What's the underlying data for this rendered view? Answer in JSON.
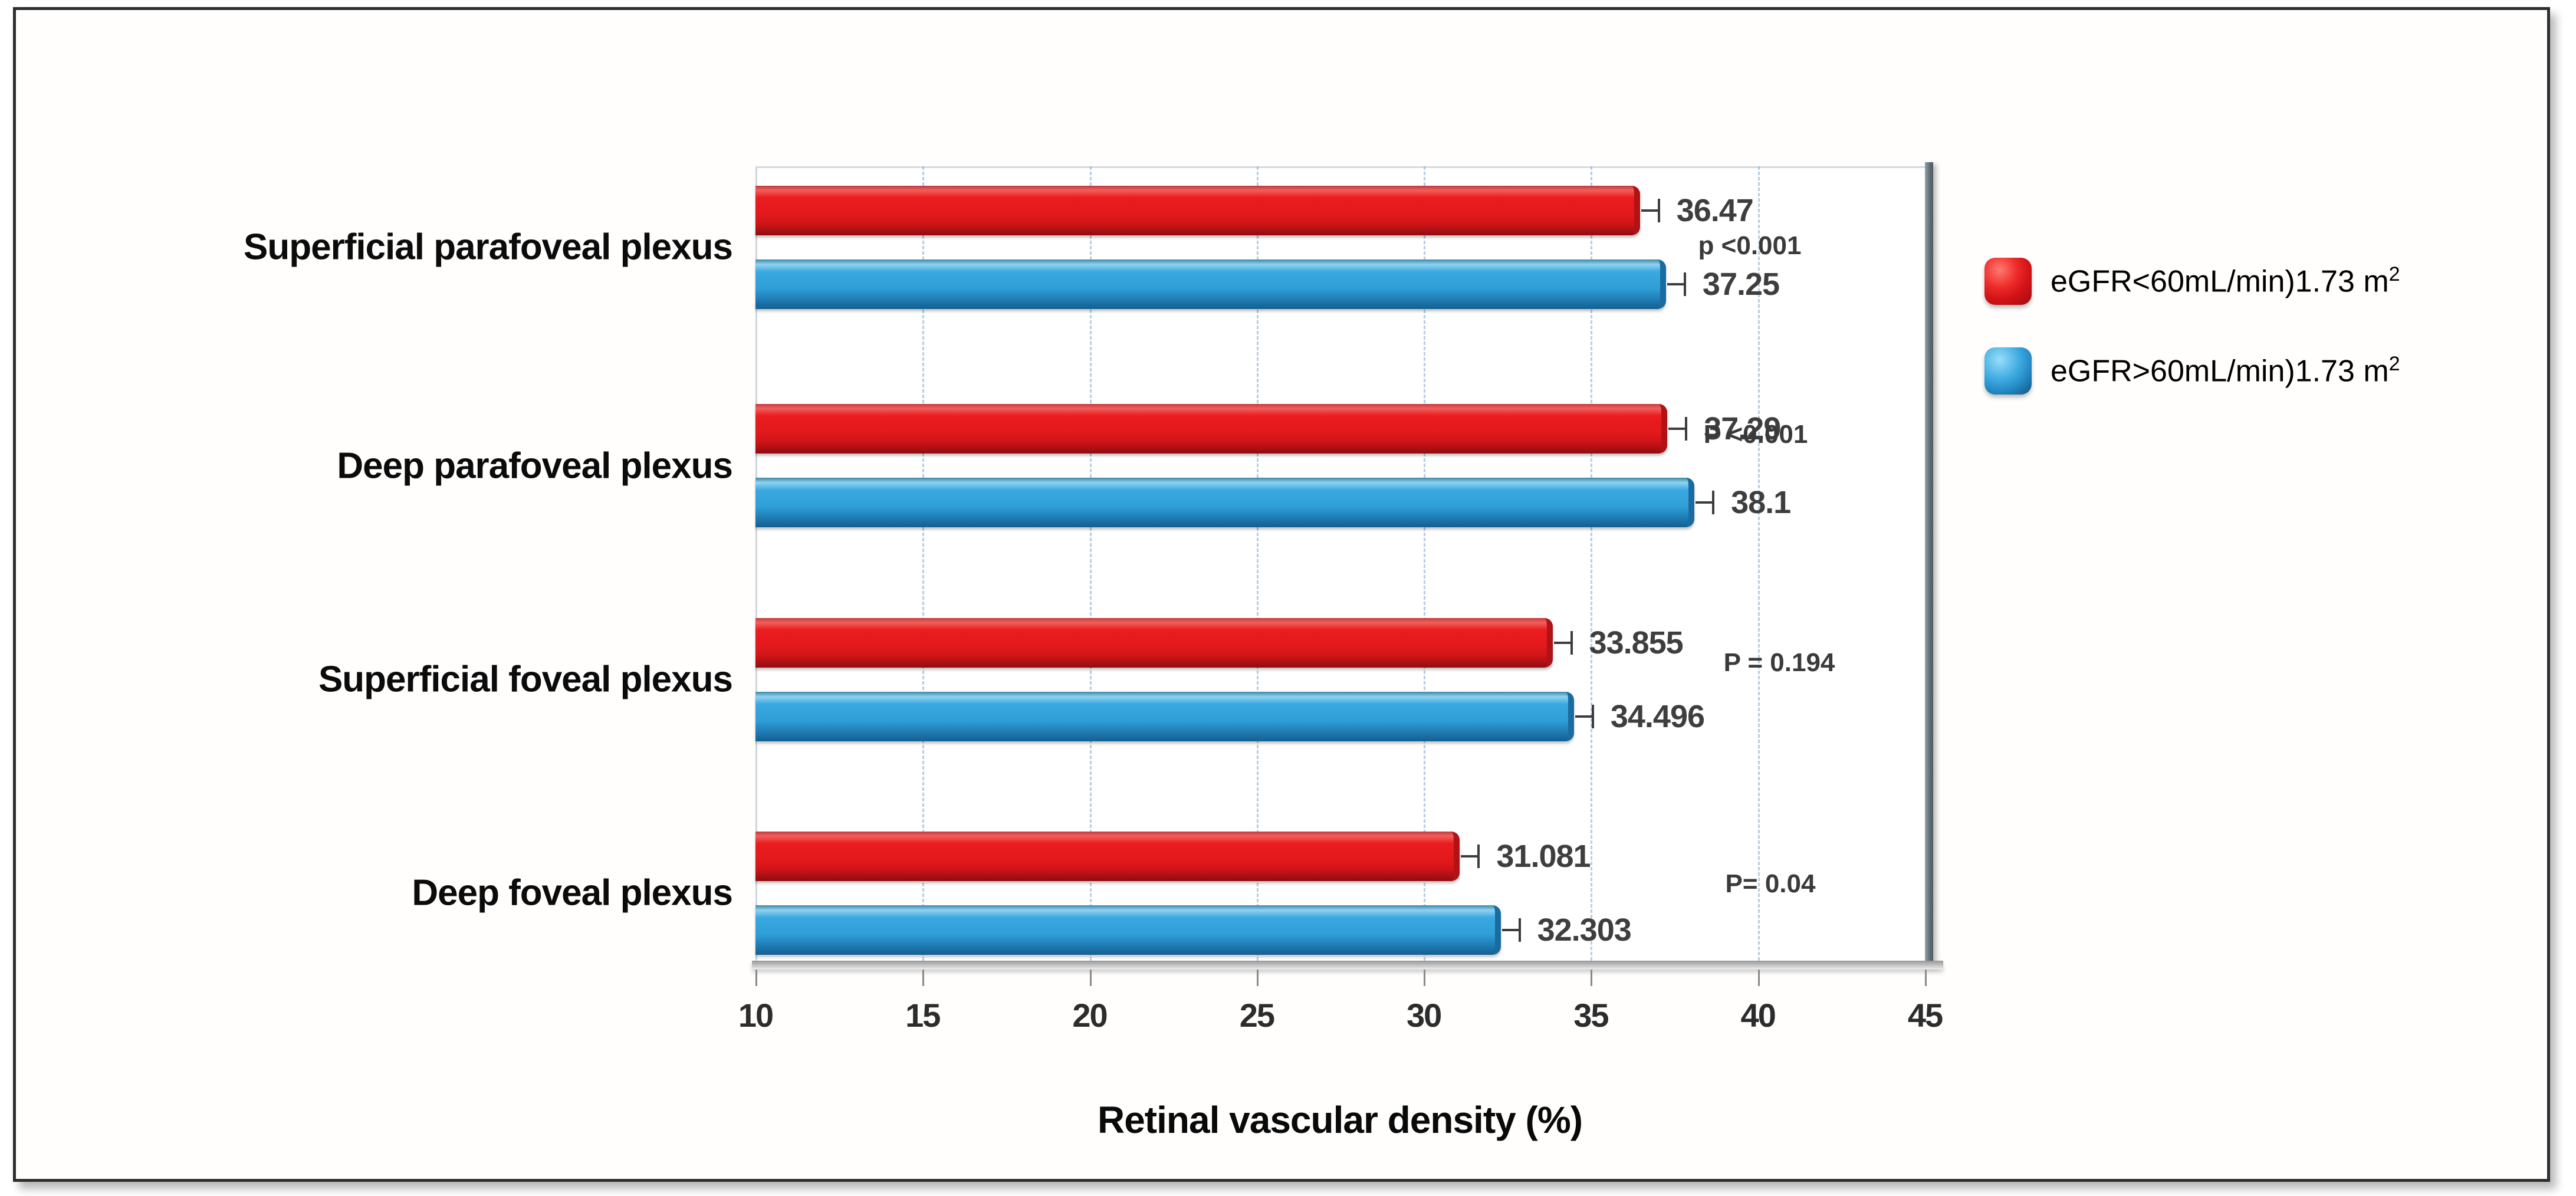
{
  "chart_data": {
    "type": "bar",
    "orientation": "horizontal",
    "title": "",
    "xlabel": "Retinal vascular density (%)",
    "ylabel": "",
    "xlim": [
      10,
      45
    ],
    "x_ticks": [
      10,
      15,
      20,
      25,
      30,
      35,
      40,
      45
    ],
    "grid": "vertical dashed gridlines at each tick",
    "legend_position": "right of plot",
    "categories": [
      "Superficial parafoveal plexus",
      "Deep parafoveal plexus",
      "Superficial foveal plexus",
      "Deep foveal plexus"
    ],
    "series": [
      {
        "name": "eGFR<60mL/min)1.73 m2",
        "color": "#e2191c",
        "values": [
          36.47,
          37.29,
          33.855,
          31.081
        ],
        "value_labels": [
          "36.47",
          "37.29",
          "33.855",
          "31.081"
        ]
      },
      {
        "name": "eGFR>60mL/min)1.73 m2",
        "color": "#2f9fd8",
        "values": [
          37.25,
          38.1,
          34.496,
          32.303
        ],
        "value_labels": [
          "37.25",
          "38.1",
          "34.496",
          "32.303"
        ]
      }
    ],
    "p_values": [
      "p <0.001",
      "P <0.001",
      "P = 0.194",
      "P= 0.04"
    ]
  },
  "legend": {
    "items": [
      {
        "label_main": "eGFR<60mL/min)1.73 m",
        "label_sup": "2",
        "color": "#e2191c"
      },
      {
        "label_main": "eGFR>60mL/min)1.73 m",
        "label_sup": "2",
        "color": "#2f9fd8"
      }
    ]
  }
}
